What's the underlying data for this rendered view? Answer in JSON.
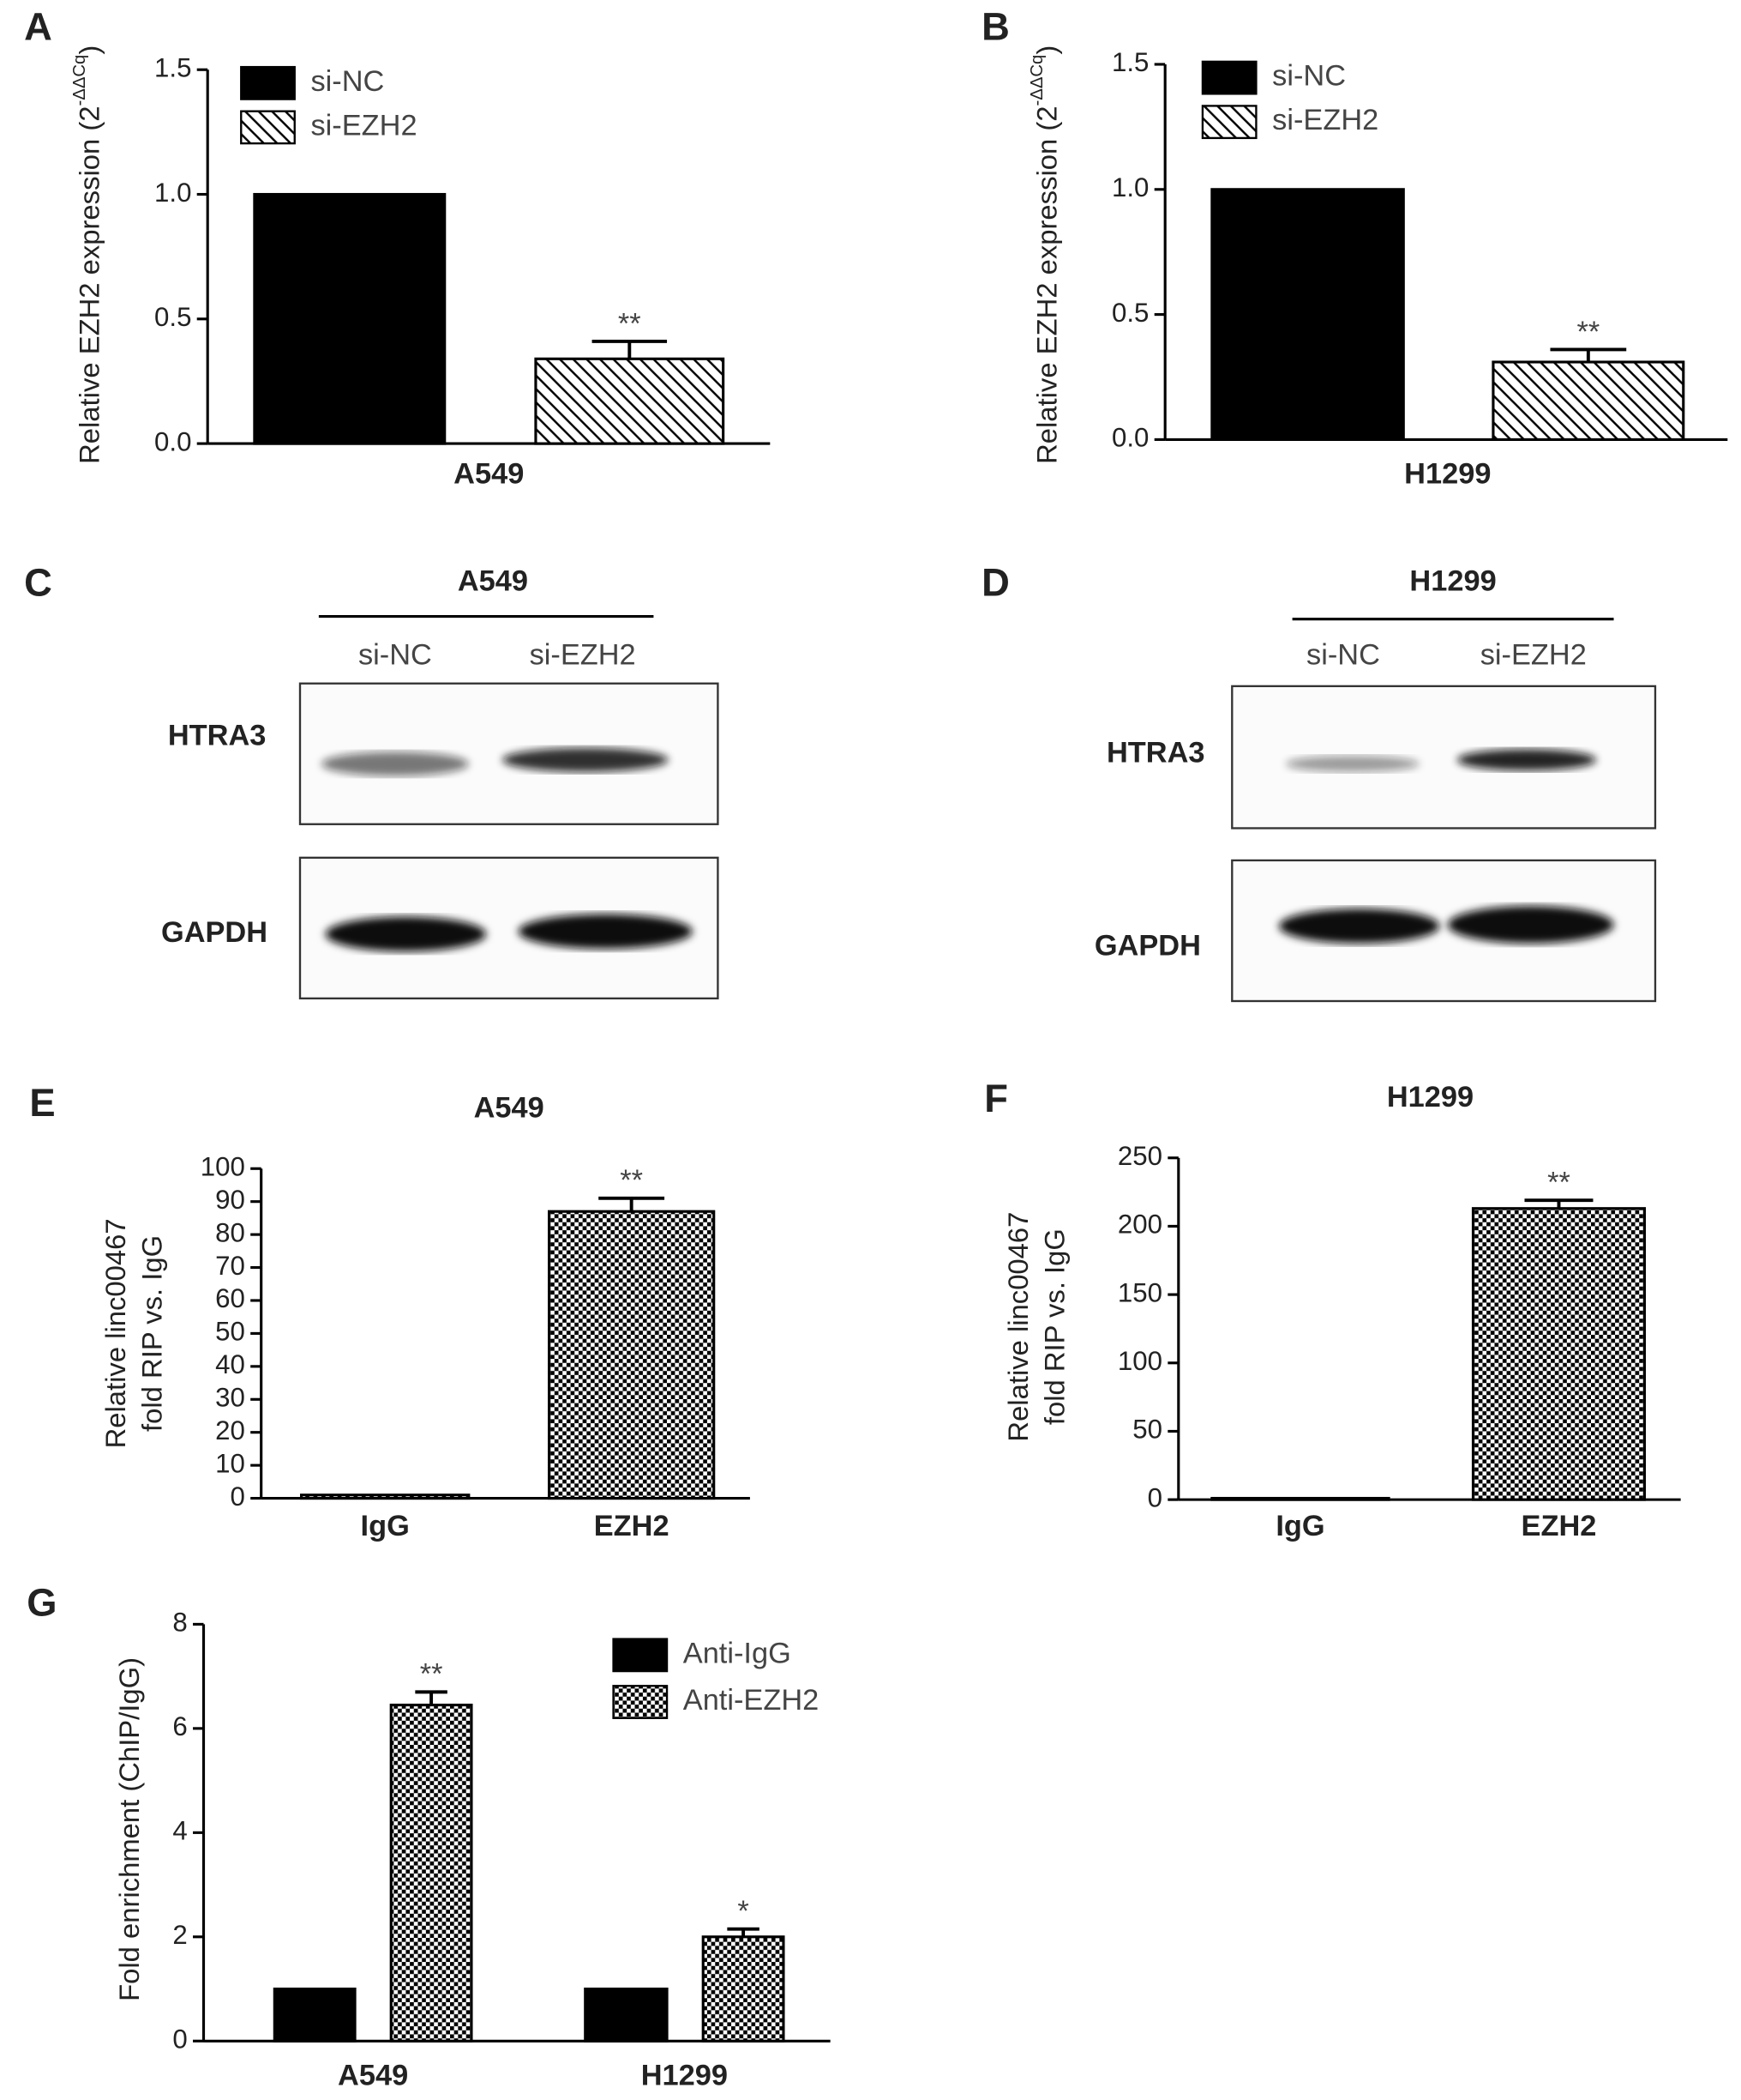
{
  "chart_data": [
    {
      "type": "bar",
      "panel": "A",
      "ylabel": "Relative EZH2 expression (2",
      "ylabel_sup": "-ΔΔCq",
      "ylabel_end": ")",
      "categories": [
        "A549"
      ],
      "series": [
        {
          "name": "si-NC",
          "color": "#000000",
          "pattern": "solid",
          "values": [
            1.0
          ]
        },
        {
          "name": "si-EZH2",
          "color": "#000000",
          "pattern": "hatch",
          "values": [
            0.34
          ],
          "errors": [
            0.07
          ],
          "sig": [
            "**"
          ]
        }
      ],
      "ylim": [
        0,
        1.5
      ],
      "yticks": [
        {
          "value": 0,
          "label": "0.0"
        },
        0.5,
        {
          "value": 1,
          "label": "1.0"
        },
        1.5
      ],
      "legend": "top-left"
    },
    {
      "type": "bar",
      "panel": "B",
      "ylabel": "Relative EZH2 expression (2",
      "ylabel_sup": "-ΔΔCq",
      "ylabel_end": ")",
      "categories": [
        "H1299"
      ],
      "series": [
        {
          "name": "si-NC",
          "color": "#000000",
          "pattern": "solid",
          "values": [
            1.0
          ]
        },
        {
          "name": "si-EZH2",
          "color": "#000000",
          "pattern": "hatch",
          "values": [
            0.31
          ],
          "errors": [
            0.05
          ],
          "sig": [
            "**"
          ]
        }
      ],
      "ylim": [
        0,
        1.5
      ],
      "yticks": [
        {
          "value": 0,
          "label": "0.0"
        },
        0.5,
        {
          "value": 1,
          "label": "1.0"
        },
        1.5
      ],
      "legend": "top-left"
    },
    {
      "type": "bar",
      "panel": "E",
      "title": "A549",
      "ylabel": [
        "Relative linc00467",
        "fold RIP vs. IgG"
      ],
      "categories": [
        "IgG",
        "EZH2"
      ],
      "values": [
        1,
        87
      ],
      "errors": [
        null,
        4
      ],
      "sig": [
        null,
        "**"
      ],
      "color": "#000000",
      "pattern": "checker",
      "ylim": [
        0,
        100
      ],
      "yticks": [
        0,
        10,
        20,
        30,
        40,
        50,
        60,
        70,
        80,
        90,
        100
      ]
    },
    {
      "type": "bar",
      "panel": "F",
      "title": "H1299",
      "ylabel": [
        "Relative linc00467",
        "fold RIP vs. IgG"
      ],
      "categories": [
        "IgG",
        "EZH2"
      ],
      "values": [
        1,
        213
      ],
      "errors": [
        null,
        6
      ],
      "sig": [
        null,
        "**"
      ],
      "color": "#000000",
      "pattern": "checker",
      "ylim": [
        0,
        250
      ],
      "yticks": [
        0,
        50,
        100,
        150,
        200,
        250
      ]
    },
    {
      "type": "bar",
      "panel": "G",
      "ylabel": "Fold enrichment (ChIP/IgG)",
      "categories": [
        "A549",
        "H1299"
      ],
      "series": [
        {
          "name": "Anti-IgG",
          "color": "#000000",
          "pattern": "solid",
          "values": [
            1.0,
            1.0
          ]
        },
        {
          "name": "Anti-EZH2",
          "color": "#000000",
          "pattern": "checker",
          "values": [
            6.45,
            2.0
          ],
          "errors": [
            0.25,
            0.15
          ],
          "sig": [
            "**",
            "*"
          ]
        }
      ],
      "ylim": [
        0,
        8
      ],
      "yticks": [
        0,
        2,
        4,
        6,
        8
      ],
      "legend": "top-right"
    }
  ],
  "blots": [
    {
      "panel": "C",
      "title": "A549",
      "lanes": [
        "si-NC",
        "si-EZH2"
      ],
      "rows": [
        "HTRA3",
        "GAPDH"
      ]
    },
    {
      "panel": "D",
      "title": "H1299",
      "lanes": [
        "si-NC",
        "si-EZH2"
      ],
      "rows": [
        "HTRA3",
        "GAPDH"
      ]
    }
  ]
}
